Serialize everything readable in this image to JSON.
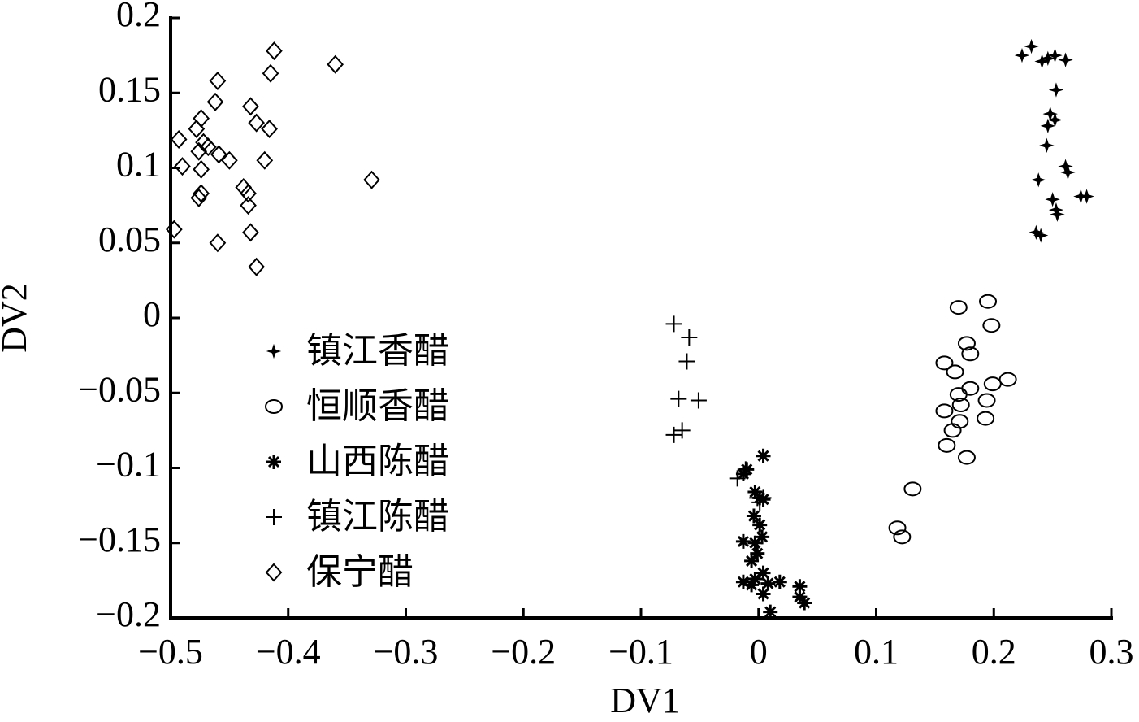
{
  "chart_data": {
    "type": "scatter",
    "xlabel": "DV1",
    "ylabel": "DV2",
    "xlim": [
      -0.5,
      0.3
    ],
    "ylim": [
      -0.2,
      0.2
    ],
    "xticks": [
      {
        "value": -0.5,
        "label": "−0.5"
      },
      {
        "value": -0.4,
        "label": "−0.4"
      },
      {
        "value": -0.3,
        "label": "−0.3"
      },
      {
        "value": -0.2,
        "label": "−0.2"
      },
      {
        "value": -0.1,
        "label": "−0.1"
      },
      0,
      0.1,
      0.2,
      0.3
    ],
    "yticks": [
      {
        "value": -0.2,
        "label": "−0.2"
      },
      {
        "value": -0.15,
        "label": "−0.15"
      },
      {
        "value": -0.1,
        "label": "−0.1"
      },
      {
        "value": -0.05,
        "label": "−0.05"
      },
      0,
      0.05,
      0.1,
      0.15,
      0.2
    ],
    "grid": false,
    "legend": "lower left",
    "series": [
      {
        "name": "镇江香醋",
        "color": "#000000",
        "marker": "dot",
        "x": [
          0.224,
          0.232,
          0.241,
          0.246,
          0.252,
          0.261,
          0.253,
          0.248,
          0.252,
          0.246,
          0.245,
          0.261,
          0.263,
          0.238,
          0.274,
          0.279,
          0.25,
          0.253,
          0.254,
          0.236,
          0.24
        ],
        "values": [
          0.175,
          0.181,
          0.171,
          0.173,
          0.175,
          0.172,
          0.152,
          0.136,
          0.132,
          0.128,
          0.115,
          0.101,
          0.097,
          0.092,
          0.081,
          0.081,
          0.079,
          0.072,
          0.069,
          0.057,
          0.055
        ]
      },
      {
        "name": "恒顺香醋",
        "color": "#000000",
        "marker": "circle",
        "x": [
          0.17,
          0.195,
          0.198,
          0.158,
          0.167,
          0.177,
          0.18,
          0.212,
          0.199,
          0.18,
          0.17,
          0.194,
          0.172,
          0.158,
          0.193,
          0.171,
          0.165,
          0.16,
          0.177,
          0.131,
          0.118,
          0.122
        ],
        "values": [
          0.007,
          0.011,
          -0.005,
          -0.03,
          -0.036,
          -0.017,
          -0.024,
          -0.041,
          -0.044,
          -0.047,
          -0.051,
          -0.055,
          -0.058,
          -0.062,
          -0.067,
          -0.069,
          -0.075,
          -0.085,
          -0.093,
          -0.114,
          -0.14,
          -0.146
        ]
      },
      {
        "name": "山西陈醋",
        "color": "#000000",
        "marker": "asterisk",
        "x": [
          0.004,
          -0.01,
          -0.013,
          -0.003,
          0.001,
          0.004,
          -0.004,
          0.001,
          0.003,
          -0.013,
          -0.003,
          -0.001,
          -0.006,
          0.004,
          -0.013,
          -0.003,
          0.008,
          0.018,
          0.035,
          0.035,
          0.039,
          0.004,
          0.01,
          -0.006
        ],
        "values": [
          -0.092,
          -0.101,
          -0.104,
          -0.116,
          -0.12,
          -0.121,
          -0.132,
          -0.138,
          -0.146,
          -0.149,
          -0.15,
          -0.157,
          -0.162,
          -0.17,
          -0.176,
          -0.174,
          -0.177,
          -0.176,
          -0.179,
          -0.186,
          -0.19,
          -0.184,
          -0.196,
          -0.178
        ]
      },
      {
        "name": "镇江陈醋",
        "color": "#000000",
        "marker": "plus",
        "x": [
          -0.072,
          -0.059,
          -0.061,
          -0.068,
          -0.051,
          -0.065,
          -0.072,
          -0.018,
          -0.011,
          -0.001,
          0.004,
          0.001
        ],
        "values": [
          -0.004,
          -0.013,
          -0.029,
          -0.054,
          -0.055,
          -0.075,
          -0.078,
          -0.107,
          -0.101,
          -0.12,
          -0.12,
          -0.123
        ]
      },
      {
        "name": "保宁醋",
        "color": "#000000",
        "marker": "diamond",
        "x": [
          -0.412,
          -0.415,
          -0.36,
          -0.46,
          -0.462,
          -0.432,
          -0.427,
          -0.416,
          -0.493,
          -0.474,
          -0.478,
          -0.472,
          -0.468,
          -0.476,
          -0.459,
          -0.45,
          -0.42,
          -0.49,
          -0.474,
          -0.438,
          -0.434,
          -0.329,
          -0.474,
          -0.476,
          -0.434,
          -0.497,
          -0.46,
          -0.432,
          -0.427
        ],
        "values": [
          0.178,
          0.163,
          0.169,
          0.158,
          0.144,
          0.141,
          0.13,
          0.126,
          0.119,
          0.133,
          0.126,
          0.117,
          0.114,
          0.111,
          0.109,
          0.105,
          0.105,
          0.101,
          0.099,
          0.087,
          0.083,
          0.092,
          0.083,
          0.08,
          0.075,
          0.059,
          0.05,
          0.057,
          0.034
        ]
      }
    ]
  }
}
